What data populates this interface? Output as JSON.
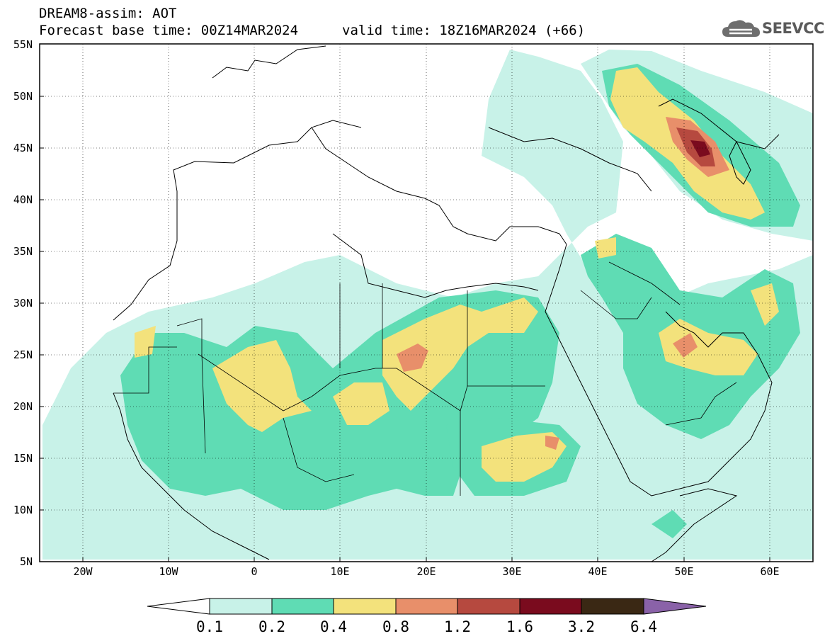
{
  "title": "DREAM8-assim: AOT",
  "forecast_base": "Forecast base time: 00Z14MAR2024",
  "valid_time": "valid time: 18Z16MAR2024 (+66)",
  "logo_text": "SEEVCCC",
  "map": {
    "lon_labels": [
      "20W",
      "10W",
      "0",
      "10E",
      "20E",
      "30E",
      "40E",
      "50E",
      "60E"
    ],
    "lat_labels": [
      "55N",
      "50N",
      "45N",
      "40N",
      "35N",
      "30N",
      "25N",
      "20N",
      "15N",
      "10N",
      "5N"
    ]
  },
  "colorbar": {
    "labels": [
      "0.1",
      "0.2",
      "0.4",
      "0.8",
      "1.2",
      "1.6",
      "3.2",
      "6.4"
    ],
    "colors": {
      "c1": "#c8f2e8",
      "c2": "#5fdcb4",
      "c3": "#f3e27c",
      "c4": "#e88f6a",
      "c5": "#b6493f",
      "c6": "#7a0b1e",
      "c7": "#3a2814",
      "c8": "#8a62a8"
    }
  }
}
